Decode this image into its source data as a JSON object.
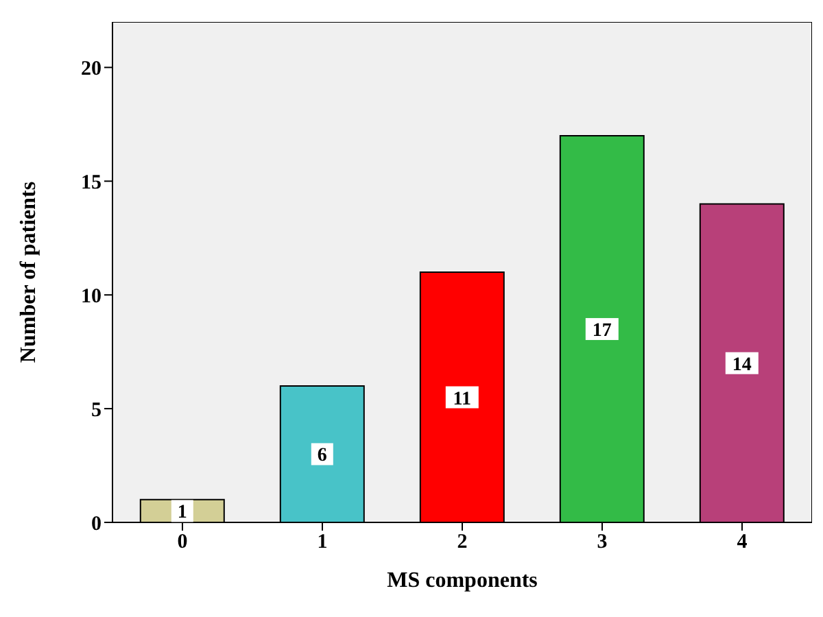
{
  "chart_data": {
    "type": "bar",
    "xlabel": "MS components",
    "ylabel": "Number of patients",
    "categories": [
      "0",
      "1",
      "2",
      "3",
      "4"
    ],
    "values": [
      1,
      6,
      11,
      17,
      14
    ],
    "colors": [
      "#d3cf96",
      "#48c3c8",
      "#ff0000",
      "#33bb47",
      "#b84079"
    ],
    "ylim": [
      0,
      22
    ],
    "yticks": [
      0,
      5,
      10,
      15,
      20
    ],
    "grid": false,
    "data_labels": true
  }
}
